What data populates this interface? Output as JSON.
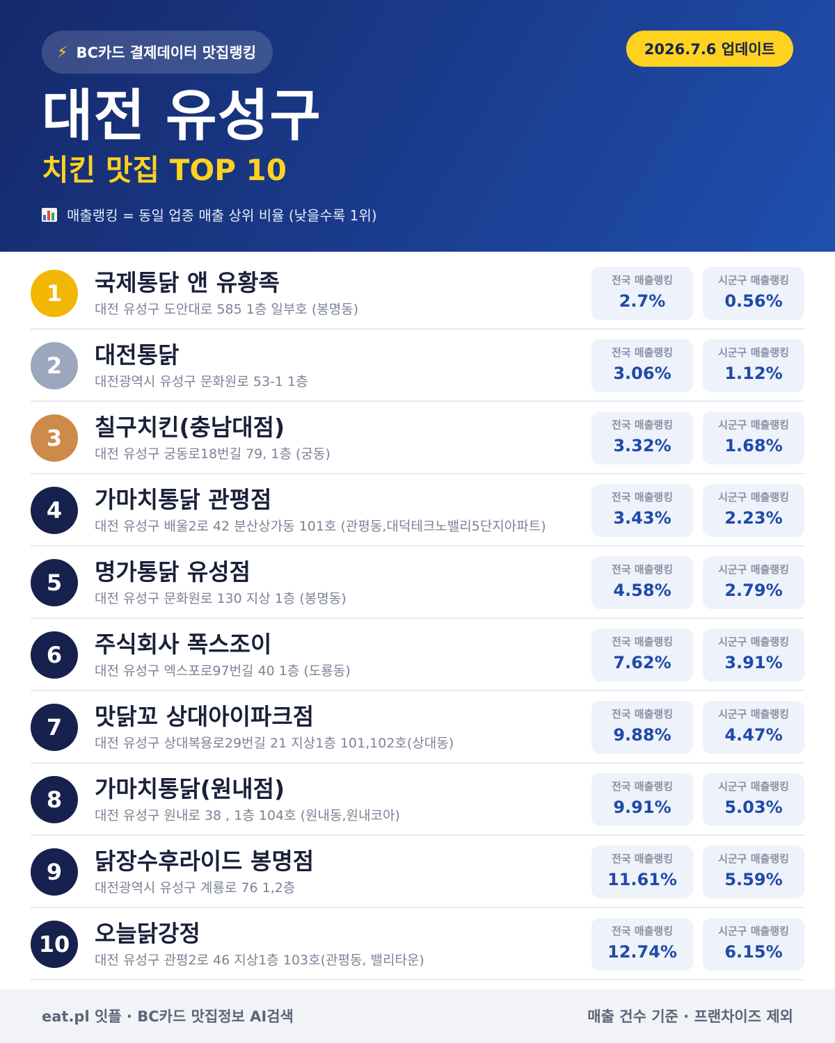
{
  "header": {
    "source_icon": "lightning-bolt-icon",
    "source_label": "BC카드 결제데이터 맛집랭킹",
    "updated": "2026.7.6 업데이트",
    "region": "대전 유성구",
    "category": "치킨 맛집 TOP 10",
    "note_icon": "bar-chart-icon",
    "note": "매출랭킹 = 동일 업종 매출 상위 비율 (낮을수록 1위)"
  },
  "colors": {
    "gold": "#f2b705",
    "silver": "#9ba7bd",
    "bronze": "#cd8a4b",
    "navy": "#16214e",
    "accent": "#ffd21f"
  },
  "ranking": {
    "national_label": "전국 매출랭킹",
    "local_label": "시군구 매출랭킹",
    "items": [
      {
        "rank": "1",
        "name": "국제통닭 앤 유황족",
        "address": "대전 유성구 도안대로 585 1층 일부호 (봉명동)",
        "national": "2.7%",
        "local": "0.56%"
      },
      {
        "rank": "2",
        "name": "대전통닭",
        "address": "대전광역시 유성구 문화원로 53-1 1층",
        "national": "3.06%",
        "local": "1.12%"
      },
      {
        "rank": "3",
        "name": "칠구치킨(충남대점)",
        "address": "대전 유성구 궁동로18번길 79, 1층 (궁동)",
        "national": "3.32%",
        "local": "1.68%"
      },
      {
        "rank": "4",
        "name": "가마치통닭 관평점",
        "address": "대전 유성구 배울2로 42 분산상가동 101호 (관평동,대덕테크노밸리5단지아파트)",
        "national": "3.43%",
        "local": "2.23%"
      },
      {
        "rank": "5",
        "name": "명가통닭 유성점",
        "address": "대전 유성구 문화원로 130 지상 1층 (봉명동)",
        "national": "4.58%",
        "local": "2.79%"
      },
      {
        "rank": "6",
        "name": "주식회사 폭스조이",
        "address": "대전 유성구 엑스포로97번길 40 1층 (도룡동)",
        "national": "7.62%",
        "local": "3.91%"
      },
      {
        "rank": "7",
        "name": "맛닭꼬 상대아이파크점",
        "address": "대전 유성구 상대복용로29번길 21 지상1층 101,102호(상대동)",
        "national": "9.88%",
        "local": "4.47%"
      },
      {
        "rank": "8",
        "name": "가마치통닭(원내점)",
        "address": "대전 유성구 원내로 38 , 1층 104호 (원내동,원내코아)",
        "national": "9.91%",
        "local": "5.03%"
      },
      {
        "rank": "9",
        "name": "닭장수후라이드 봉명점",
        "address": "대전광역시 유성구 계룡로 76 1,2층",
        "national": "11.61%",
        "local": "5.59%"
      },
      {
        "rank": "10",
        "name": "오늘닭강정",
        "address": "대전 유성구 관평2로 46 지상1층 103호(관평동, 밸리타운)",
        "national": "12.74%",
        "local": "6.15%"
      }
    ]
  },
  "footer": {
    "left": "eat.pl 잇플 · BC카드 맛집정보 AI검색",
    "right": "매출 건수 기준 · 프랜차이즈 제외"
  }
}
